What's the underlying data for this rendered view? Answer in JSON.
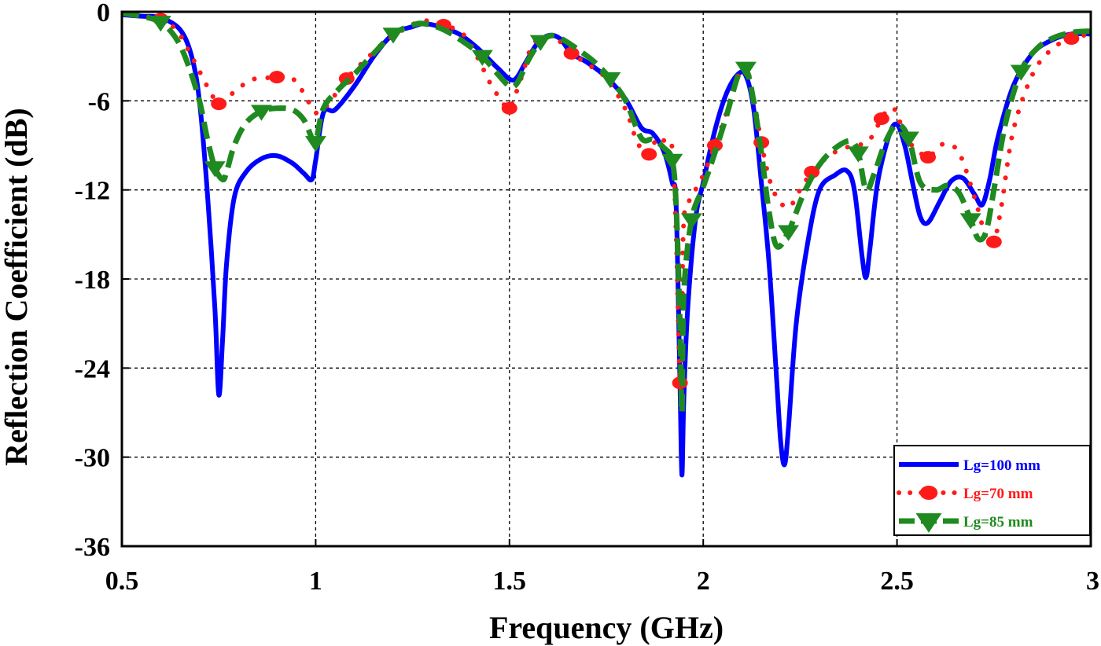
{
  "chart_data": {
    "type": "line",
    "title": "",
    "xlabel": "Frequency (GHz)",
    "ylabel": "Reflection Coefficient (dB)",
    "xlim": [
      0.5,
      3
    ],
    "ylim": [
      -36,
      0
    ],
    "x_ticks": [
      "0.5",
      "1",
      "1.5",
      "2",
      "2.5",
      "3"
    ],
    "y_ticks": [
      "0",
      "-6",
      "-12",
      "-18",
      "-24",
      "-30",
      "-36"
    ],
    "x_tick_values": [
      0.5,
      1,
      1.5,
      2,
      2.5,
      3
    ],
    "y_tick_values": [
      0,
      -6,
      -12,
      -18,
      -24,
      -30,
      -36
    ],
    "grid": true,
    "legend_position": "bottom-right",
    "series": [
      {
        "name": "Lg=100 mm",
        "color": "#0000ff",
        "style": "solid",
        "marker": "none",
        "x": [
          0.5,
          0.55,
          0.6,
          0.65,
          0.68,
          0.7,
          0.72,
          0.74,
          0.75,
          0.76,
          0.77,
          0.79,
          0.82,
          0.86,
          0.9,
          0.94,
          0.97,
          0.99,
          1.0,
          1.02,
          1.05,
          1.1,
          1.15,
          1.2,
          1.25,
          1.28,
          1.32,
          1.37,
          1.42,
          1.47,
          1.51,
          1.54,
          1.57,
          1.6,
          1.63,
          1.66,
          1.7,
          1.75,
          1.8,
          1.84,
          1.87,
          1.9,
          1.92,
          1.93,
          1.94,
          1.945,
          1.95,
          1.96,
          1.98,
          2.0,
          2.03,
          2.06,
          2.09,
          2.11,
          2.13,
          2.15,
          2.17,
          2.19,
          2.2,
          2.21,
          2.22,
          2.24,
          2.27,
          2.3,
          2.34,
          2.37,
          2.39,
          2.41,
          2.42,
          2.43,
          2.45,
          2.48,
          2.5,
          2.52,
          2.54,
          2.56,
          2.58,
          2.61,
          2.64,
          2.67,
          2.7,
          2.72,
          2.74,
          2.76,
          2.8,
          2.85,
          2.9,
          2.95,
          3.0
        ],
        "y": [
          -0.2,
          -0.3,
          -0.4,
          -1.2,
          -3.0,
          -6.0,
          -12.0,
          -20.0,
          -25.8,
          -22.0,
          -17.0,
          -12.5,
          -10.8,
          -9.9,
          -9.7,
          -10.2,
          -10.9,
          -11.3,
          -10.0,
          -6.8,
          -6.6,
          -5.0,
          -3.0,
          -1.5,
          -1.0,
          -0.8,
          -1.0,
          -1.5,
          -2.5,
          -3.8,
          -4.6,
          -3.5,
          -2.2,
          -1.6,
          -1.8,
          -2.8,
          -3.4,
          -4.4,
          -5.9,
          -7.8,
          -8.2,
          -9.5,
          -11.5,
          -13.0,
          -25.0,
          -31.2,
          -26.0,
          -20.0,
          -14.0,
          -11.5,
          -8.0,
          -5.5,
          -4.2,
          -4.3,
          -6.5,
          -11.5,
          -17.0,
          -25.0,
          -29.0,
          -30.5,
          -28.0,
          -21.0,
          -15.5,
          -12.0,
          -11.0,
          -10.7,
          -12.0,
          -16.5,
          -17.9,
          -16.0,
          -11.5,
          -8.3,
          -7.6,
          -9.0,
          -11.5,
          -13.8,
          -14.2,
          -12.8,
          -11.4,
          -11.2,
          -12.3,
          -13.0,
          -11.2,
          -8.5,
          -5.0,
          -2.8,
          -1.9,
          -1.5,
          -1.5
        ]
      },
      {
        "name": "Lg=70 mm",
        "color": "#ff1a1a",
        "style": "dotted",
        "marker": "circle",
        "x": [
          0.5,
          0.55,
          0.6,
          0.64,
          0.67,
          0.7,
          0.73,
          0.75,
          0.77,
          0.8,
          0.83,
          0.86,
          0.9,
          0.94,
          0.97,
          1.0,
          1.03,
          1.08,
          1.13,
          1.18,
          1.24,
          1.28,
          1.33,
          1.38,
          1.42,
          1.45,
          1.48,
          1.5,
          1.53,
          1.56,
          1.6,
          1.63,
          1.66,
          1.7,
          1.75,
          1.8,
          1.83,
          1.86,
          1.88,
          1.9,
          1.92,
          1.93,
          1.94,
          1.945,
          1.95,
          1.97,
          2.0,
          2.03,
          2.06,
          2.09,
          2.11,
          2.13,
          2.15,
          2.17,
          2.19,
          2.22,
          2.25,
          2.28,
          2.32,
          2.36,
          2.4,
          2.43,
          2.46,
          2.48,
          2.5,
          2.52,
          2.55,
          2.58,
          2.62,
          2.66,
          2.7,
          2.73,
          2.75,
          2.77,
          2.8,
          2.85,
          2.9,
          2.95,
          3.0
        ],
        "y": [
          -0.1,
          -0.3,
          -0.5,
          -1.2,
          -2.5,
          -4.0,
          -5.5,
          -6.2,
          -5.8,
          -5.2,
          -4.6,
          -4.5,
          -4.4,
          -4.5,
          -5.5,
          -6.8,
          -6.3,
          -4.5,
          -3.2,
          -2.0,
          -1.0,
          -0.6,
          -0.9,
          -1.5,
          -3.2,
          -4.8,
          -6.0,
          -6.5,
          -4.5,
          -2.2,
          -1.7,
          -2.0,
          -2.8,
          -3.5,
          -4.5,
          -6.6,
          -8.8,
          -9.6,
          -8.5,
          -8.7,
          -9.2,
          -15.0,
          -25.0,
          -22.0,
          -14.0,
          -12.5,
          -11.0,
          -9.0,
          -6.8,
          -4.3,
          -3.6,
          -5.8,
          -8.8,
          -11.2,
          -12.5,
          -13.2,
          -12.0,
          -10.8,
          -9.8,
          -9.2,
          -9.0,
          -8.6,
          -7.2,
          -6.5,
          -6.8,
          -8.5,
          -9.2,
          -9.8,
          -8.9,
          -9.5,
          -12.5,
          -15.2,
          -15.5,
          -13.0,
          -8.0,
          -4.2,
          -2.5,
          -1.8,
          -1.5
        ]
      },
      {
        "name": "Lg=85 mm",
        "color": "#1f8a1f",
        "style": "dashed",
        "marker": "triangle-down",
        "x": [
          0.5,
          0.55,
          0.6,
          0.64,
          0.67,
          0.7,
          0.72,
          0.74,
          0.76,
          0.77,
          0.79,
          0.82,
          0.86,
          0.9,
          0.94,
          0.97,
          0.99,
          1.0,
          1.02,
          1.06,
          1.1,
          1.15,
          1.2,
          1.25,
          1.28,
          1.33,
          1.38,
          1.43,
          1.47,
          1.5,
          1.52,
          1.55,
          1.58,
          1.61,
          1.64,
          1.68,
          1.72,
          1.76,
          1.8,
          1.84,
          1.87,
          1.9,
          1.92,
          1.93,
          1.94,
          1.945,
          1.95,
          1.97,
          2.0,
          2.03,
          2.06,
          2.09,
          2.11,
          2.13,
          2.15,
          2.17,
          2.19,
          2.22,
          2.26,
          2.3,
          2.34,
          2.38,
          2.4,
          2.42,
          2.44,
          2.47,
          2.5,
          2.53,
          2.56,
          2.6,
          2.63,
          2.66,
          2.69,
          2.71,
          2.73,
          2.75,
          2.78,
          2.82,
          2.86,
          2.9,
          2.95,
          3.0
        ],
        "y": [
          -0.1,
          -0.3,
          -0.7,
          -1.8,
          -3.5,
          -6.0,
          -8.5,
          -10.5,
          -11.3,
          -10.8,
          -9.0,
          -7.5,
          -6.7,
          -6.5,
          -6.6,
          -7.3,
          -8.5,
          -8.8,
          -6.5,
          -5.2,
          -4.2,
          -2.8,
          -1.5,
          -0.9,
          -0.8,
          -1.2,
          -2.0,
          -3.0,
          -4.2,
          -5.0,
          -4.8,
          -3.2,
          -2.0,
          -1.6,
          -1.9,
          -2.6,
          -3.4,
          -4.5,
          -6.0,
          -8.5,
          -8.6,
          -9.2,
          -10.0,
          -13.0,
          -21.0,
          -27.0,
          -19.0,
          -14.0,
          -11.8,
          -9.5,
          -7.0,
          -4.3,
          -3.8,
          -6.0,
          -9.5,
          -13.5,
          -15.8,
          -14.8,
          -12.2,
          -10.3,
          -9.2,
          -8.7,
          -9.5,
          -12.0,
          -11.0,
          -8.8,
          -7.6,
          -8.5,
          -11.5,
          -12.0,
          -11.7,
          -12.2,
          -14.0,
          -15.3,
          -14.8,
          -12.0,
          -7.5,
          -4.0,
          -2.5,
          -1.8,
          -1.4,
          -1.3
        ]
      }
    ]
  }
}
